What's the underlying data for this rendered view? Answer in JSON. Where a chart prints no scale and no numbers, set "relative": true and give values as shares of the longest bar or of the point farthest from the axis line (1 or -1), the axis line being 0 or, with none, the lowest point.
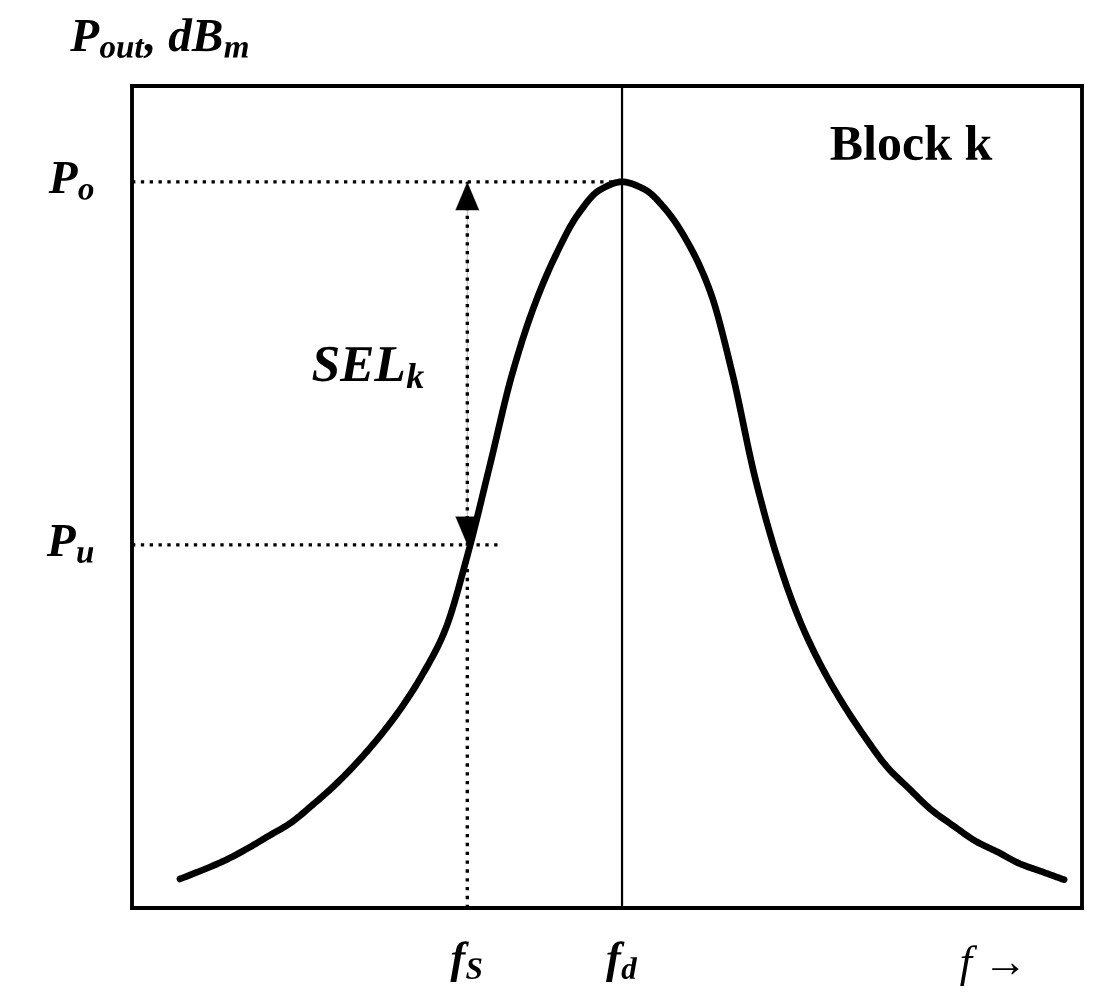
{
  "chart_data": {
    "type": "line",
    "relative": true,
    "line_style": "solid",
    "xlabel": "f →",
    "ylabel": "P$_{out}$, dB$_{m}$",
    "categories": [
      null,
      null,
      null,
      null,
      null,
      null,
      null,
      null,
      null,
      null,
      null,
      null,
      null,
      "f$_{S}$",
      null,
      null,
      null,
      null,
      null,
      null,
      "f$_{d}$",
      null,
      null,
      null,
      null,
      null,
      null,
      null,
      null,
      null,
      null,
      null,
      null,
      null,
      null,
      null,
      null,
      null,
      null,
      null,
      null
    ],
    "series": [
      {
        "color": "#000000",
        "values": [
          0.04,
          0.052,
          0.065,
          0.081,
          0.099,
          0.117,
          0.142,
          0.169,
          0.2,
          0.235,
          0.275,
          0.323,
          0.383,
          0.485,
          0.607,
          0.732,
          0.827,
          0.899,
          0.955,
          0.989,
          1.0,
          0.99,
          0.961,
          0.915,
          0.848,
          0.735,
          0.595,
          0.485,
          0.399,
          0.334,
          0.281,
          0.235,
          0.194,
          0.164,
          0.135,
          0.113,
          0.092,
          0.077,
          0.061,
          0.05,
          0.039
        ]
      }
    ],
    "ref_lines": [
      {
        "axis": "y",
        "value": 1,
        "label": "P$_{o}$",
        "line_style": "dotted",
        "color": "#000000"
      },
      {
        "axis": "y",
        "value": 0.5,
        "label": "P$_{u}$",
        "line_style": "dotted",
        "color": "#000000"
      },
      {
        "axis": "x",
        "value": "f$_{S}$",
        "line_style": "dotted",
        "color": "#000000"
      },
      {
        "axis": "x",
        "value": "f$_{d}$",
        "line_style": "solid",
        "color": "#000000"
      }
    ],
    "annotations": [
      {
        "text": "SEL$_{k}$",
        "x": "f$_{S}$",
        "y": 0.75
      },
      "Block k"
    ]
  }
}
